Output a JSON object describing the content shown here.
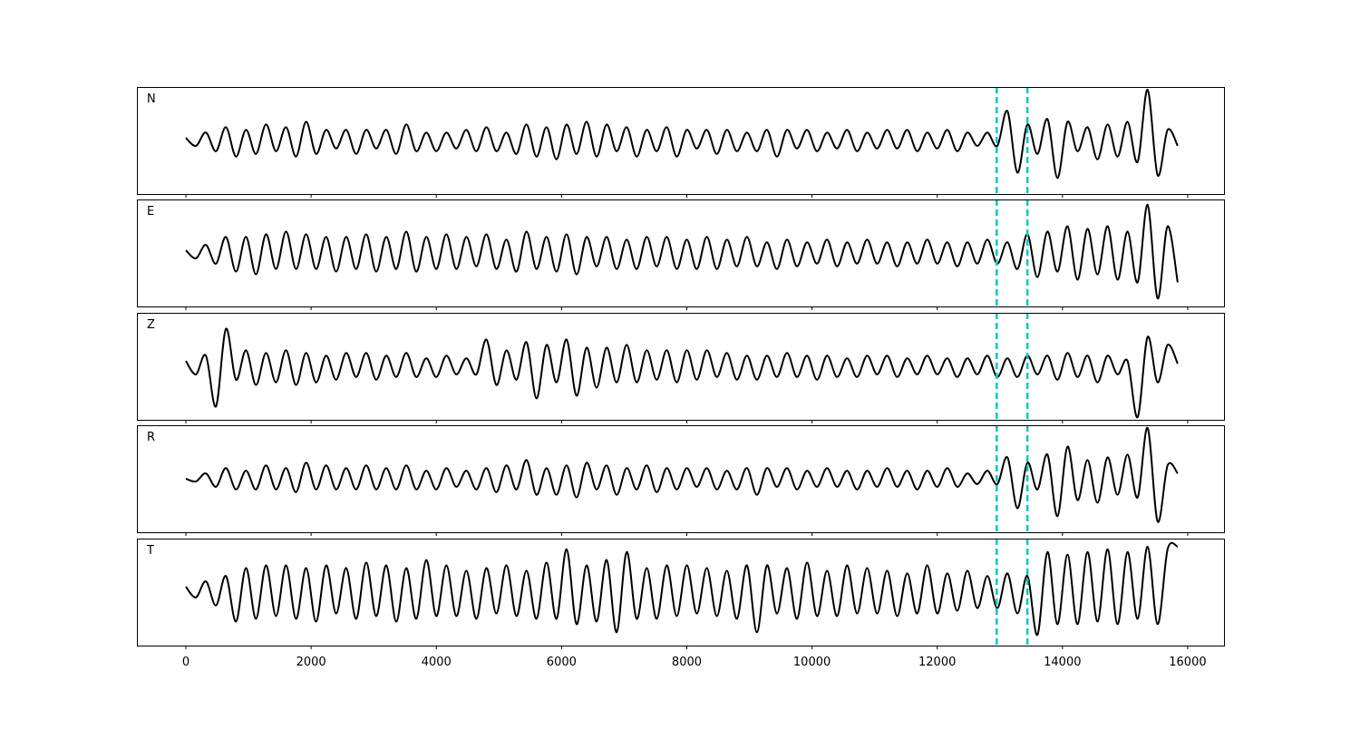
{
  "chart_data": {
    "type": "line",
    "title": "",
    "xlabel": "",
    "ylabel": "",
    "xlim": [
      -782,
      16580
    ],
    "ylim": [
      -1,
      1
    ],
    "grid": false,
    "x_ticks": [
      0,
      2000,
      4000,
      6000,
      8000,
      10000,
      12000,
      14000,
      16000
    ],
    "x_tick_labels": [
      "0",
      "2000",
      "4000",
      "6000",
      "8000",
      "10000",
      "12000",
      "14000",
      "16000"
    ],
    "x_start": 0,
    "x_step": 160,
    "line_color": "#000000",
    "markers": {
      "values": [
        12950,
        13440
      ],
      "color": "#00c8c8",
      "style": "dashed"
    },
    "panels": [
      {
        "label": "N",
        "values": [
          0.05,
          -0.1,
          0.15,
          -0.2,
          0.25,
          -0.3,
          0.2,
          -0.25,
          0.3,
          -0.2,
          0.25,
          -0.3,
          0.35,
          -0.25,
          0.2,
          -0.15,
          0.2,
          -0.25,
          0.2,
          -0.15,
          0.2,
          -0.25,
          0.3,
          -0.2,
          0.15,
          -0.2,
          0.15,
          -0.15,
          0.2,
          -0.2,
          0.25,
          -0.2,
          0.15,
          -0.25,
          0.3,
          -0.3,
          0.25,
          -0.35,
          0.3,
          -0.25,
          0.35,
          -0.3,
          0.3,
          -0.2,
          0.25,
          -0.3,
          0.2,
          -0.2,
          0.25,
          -0.3,
          0.2,
          -0.15,
          0.2,
          -0.25,
          0.2,
          -0.2,
          0.15,
          -0.2,
          0.2,
          -0.3,
          0.2,
          -0.15,
          0.2,
          -0.2,
          0.15,
          -0.15,
          0.2,
          -0.2,
          0.15,
          -0.15,
          0.2,
          -0.15,
          0.2,
          -0.2,
          0.15,
          -0.15,
          0.2,
          -0.2,
          0.15,
          -0.1,
          0.15,
          -0.1,
          0.55,
          -0.6,
          0.3,
          -0.25,
          0.4,
          -0.7,
          0.35,
          -0.2,
          0.25,
          -0.35,
          0.3,
          -0.3,
          0.35,
          -0.4,
          0.95,
          -0.65,
          0.2,
          -0.1
        ]
      },
      {
        "label": "E",
        "values": [
          0.05,
          -0.1,
          0.15,
          -0.2,
          0.3,
          -0.35,
          0.3,
          -0.4,
          0.35,
          -0.3,
          0.4,
          -0.3,
          0.35,
          -0.3,
          0.3,
          -0.35,
          0.3,
          -0.3,
          0.35,
          -0.35,
          0.3,
          -0.3,
          0.4,
          -0.35,
          0.3,
          -0.3,
          0.35,
          -0.3,
          0.3,
          -0.25,
          0.35,
          -0.3,
          0.25,
          -0.35,
          0.4,
          -0.3,
          0.3,
          -0.35,
          0.35,
          -0.4,
          0.3,
          -0.25,
          0.3,
          -0.3,
          0.25,
          -0.3,
          0.3,
          -0.25,
          0.3,
          -0.3,
          0.25,
          -0.3,
          0.3,
          -0.3,
          0.25,
          -0.25,
          0.3,
          -0.25,
          0.2,
          -0.3,
          0.25,
          -0.25,
          0.2,
          -0.2,
          0.25,
          -0.25,
          0.2,
          -0.2,
          0.25,
          -0.2,
          0.2,
          -0.25,
          0.2,
          -0.2,
          0.25,
          -0.2,
          0.2,
          -0.25,
          0.2,
          -0.2,
          0.25,
          -0.2,
          0.2,
          -0.3,
          0.35,
          -0.45,
          0.4,
          -0.35,
          0.5,
          -0.5,
          0.45,
          -0.4,
          0.5,
          -0.5,
          0.4,
          -0.55,
          0.9,
          -0.85,
          0.5,
          -0.55
        ]
      },
      {
        "label": "Z",
        "values": [
          0.1,
          -0.15,
          0.2,
          -0.75,
          0.7,
          -0.25,
          0.3,
          -0.35,
          0.25,
          -0.3,
          0.3,
          -0.35,
          0.25,
          -0.3,
          0.2,
          -0.25,
          0.25,
          -0.2,
          0.25,
          -0.25,
          0.2,
          -0.2,
          0.25,
          -0.2,
          0.15,
          -0.2,
          0.2,
          -0.15,
          0.15,
          -0.15,
          0.5,
          -0.35,
          0.3,
          -0.25,
          0.45,
          -0.6,
          0.4,
          -0.3,
          0.5,
          -0.55,
          0.35,
          -0.4,
          0.35,
          -0.3,
          0.4,
          -0.3,
          0.3,
          -0.25,
          0.3,
          -0.3,
          0.3,
          -0.25,
          0.3,
          -0.2,
          0.25,
          -0.25,
          0.2,
          -0.25,
          0.2,
          -0.2,
          0.25,
          -0.2,
          0.2,
          -0.25,
          0.2,
          -0.2,
          0.15,
          -0.2,
          0.2,
          -0.15,
          0.2,
          -0.2,
          0.15,
          -0.15,
          0.2,
          -0.15,
          0.15,
          -0.2,
          0.15,
          -0.15,
          0.2,
          -0.2,
          0.15,
          -0.2,
          0.2,
          -0.15,
          0.2,
          -0.25,
          0.25,
          -0.2,
          0.2,
          -0.3,
          0.2,
          -0.15,
          0.1,
          -0.95,
          0.55,
          -0.3,
          0.4,
          0.05
        ]
      },
      {
        "label": "R",
        "values": [
          0.0,
          -0.05,
          0.1,
          -0.15,
          0.2,
          -0.2,
          0.15,
          -0.2,
          0.25,
          -0.2,
          0.2,
          -0.25,
          0.3,
          -0.2,
          0.25,
          -0.2,
          0.2,
          -0.2,
          0.25,
          -0.2,
          0.2,
          -0.2,
          0.25,
          -0.2,
          0.15,
          -0.2,
          0.2,
          -0.15,
          0.15,
          -0.2,
          0.2,
          -0.25,
          0.25,
          -0.2,
          0.35,
          -0.3,
          0.2,
          -0.3,
          0.25,
          -0.35,
          0.3,
          -0.2,
          0.25,
          -0.3,
          0.2,
          -0.2,
          0.25,
          -0.25,
          0.2,
          -0.2,
          0.2,
          -0.15,
          0.2,
          -0.2,
          0.15,
          -0.2,
          0.2,
          -0.3,
          0.2,
          -0.15,
          0.2,
          -0.2,
          0.15,
          -0.15,
          0.2,
          -0.15,
          0.15,
          -0.2,
          0.15,
          -0.15,
          0.2,
          -0.15,
          0.15,
          -0.2,
          0.15,
          -0.15,
          0.2,
          -0.15,
          0.1,
          -0.1,
          0.15,
          -0.1,
          0.4,
          -0.55,
          0.3,
          -0.2,
          0.45,
          -0.7,
          0.6,
          -0.4,
          0.35,
          -0.45,
          0.4,
          -0.3,
          0.45,
          -0.35,
          0.95,
          -0.8,
          0.25,
          0.1
        ]
      },
      {
        "label": "T",
        "values": [
          0.1,
          -0.1,
          0.2,
          -0.25,
          0.3,
          -0.55,
          0.45,
          -0.5,
          0.5,
          -0.45,
          0.5,
          -0.5,
          0.45,
          -0.55,
          0.5,
          -0.4,
          0.45,
          -0.5,
          0.55,
          -0.45,
          0.5,
          -0.55,
          0.45,
          -0.5,
          0.6,
          -0.45,
          0.5,
          -0.45,
          0.4,
          -0.5,
          0.45,
          -0.4,
          0.5,
          -0.45,
          0.4,
          -0.5,
          0.55,
          -0.5,
          0.8,
          -0.6,
          0.5,
          -0.55,
          0.6,
          -0.75,
          0.75,
          -0.5,
          0.45,
          -0.5,
          0.5,
          -0.45,
          0.5,
          -0.4,
          0.45,
          -0.45,
          0.4,
          -0.5,
          0.5,
          -0.75,
          0.5,
          -0.4,
          0.45,
          -0.5,
          0.55,
          -0.45,
          0.4,
          -0.45,
          0.5,
          -0.4,
          0.45,
          -0.4,
          0.4,
          -0.45,
          0.35,
          -0.4,
          0.5,
          -0.4,
          0.35,
          -0.35,
          0.4,
          -0.3,
          0.3,
          -0.3,
          0.35,
          -0.4,
          0.3,
          -0.8,
          0.75,
          -0.6,
          0.7,
          -0.6,
          0.75,
          -0.55,
          0.8,
          -0.6,
          0.75,
          -0.5,
          0.85,
          -0.6,
          0.8,
          0.85
        ]
      }
    ]
  }
}
